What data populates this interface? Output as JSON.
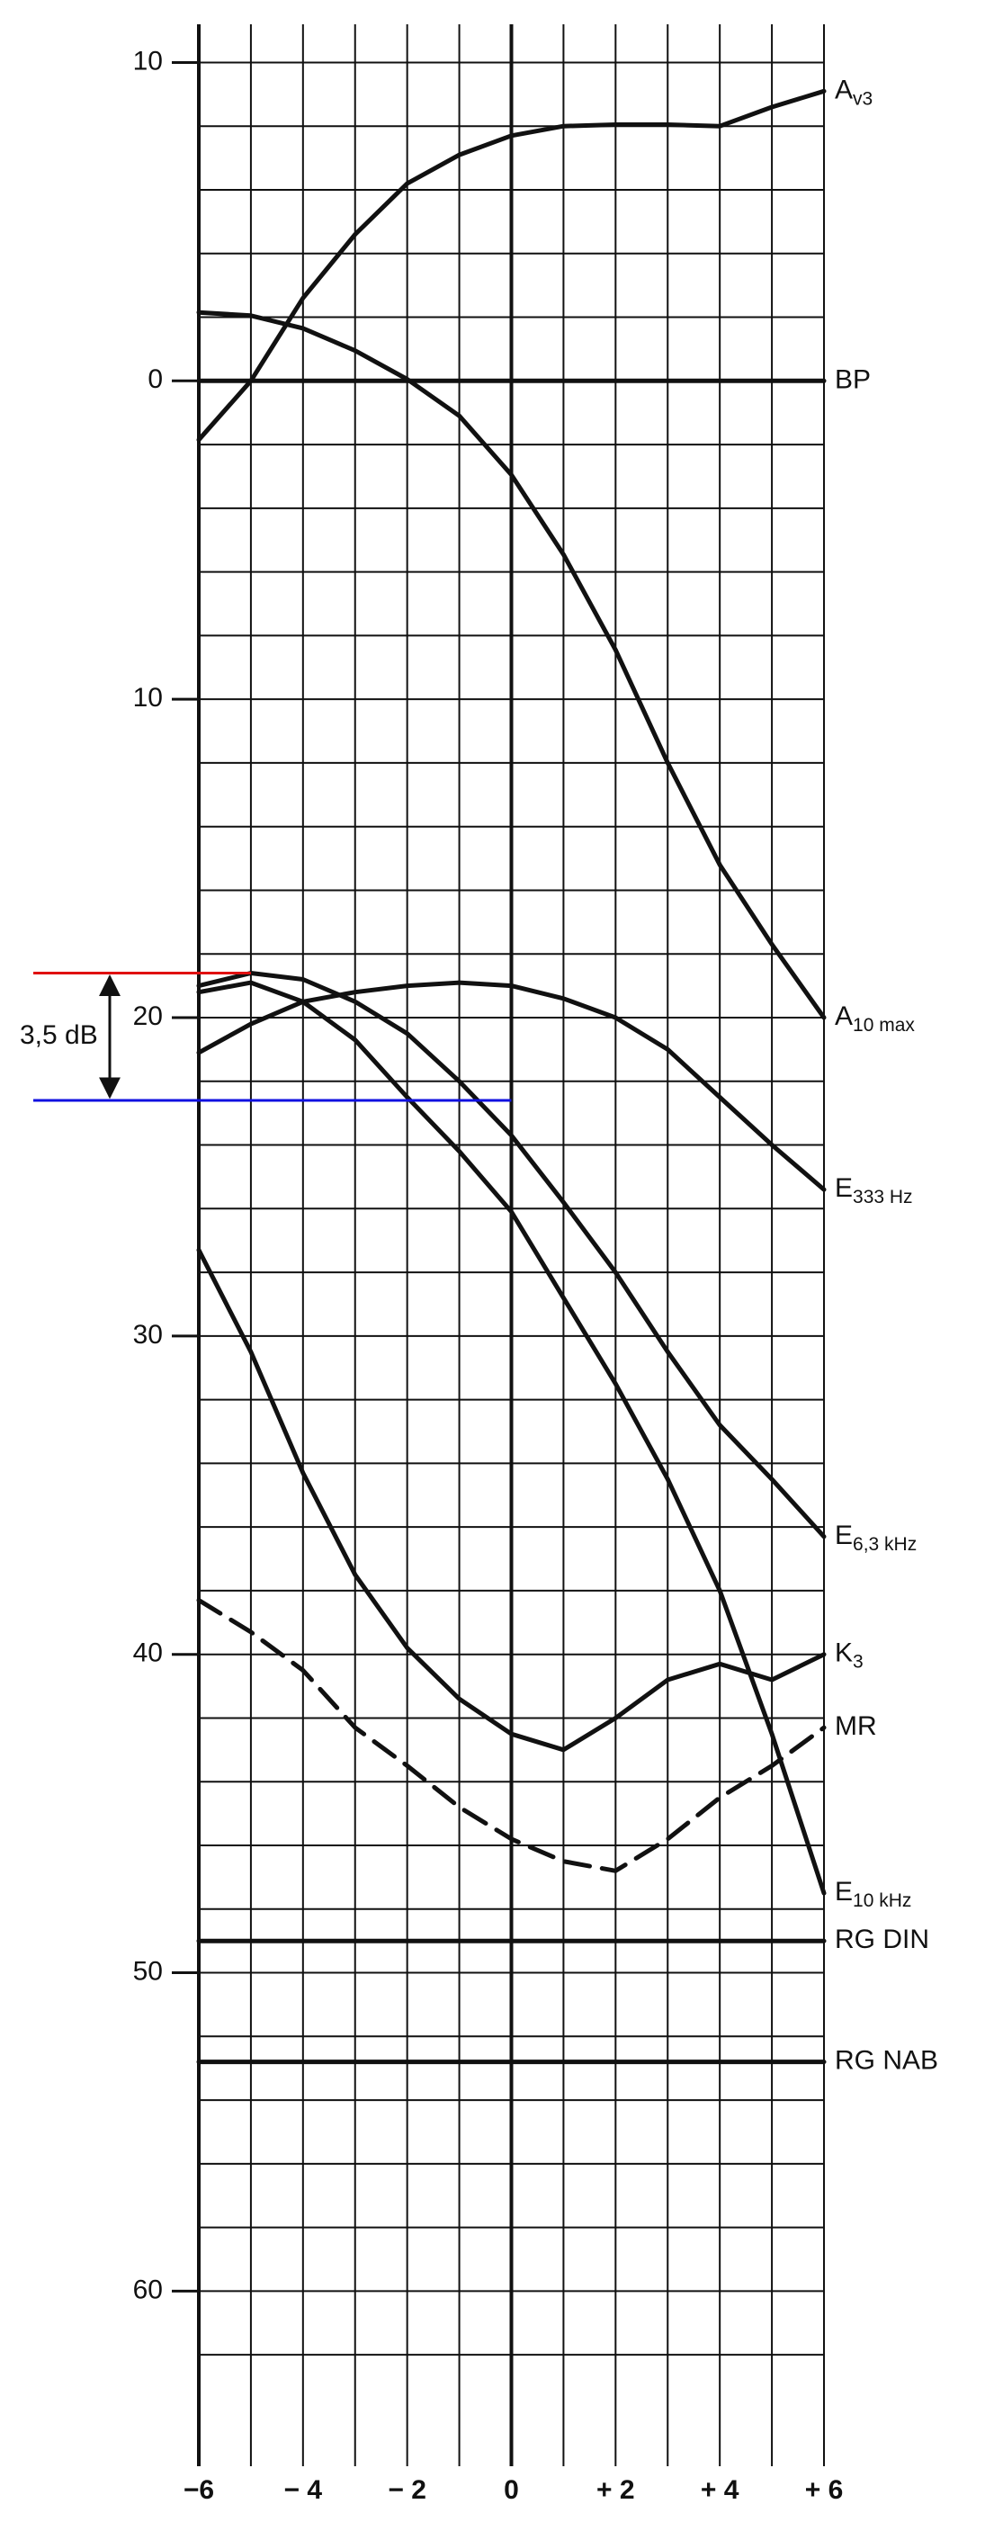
{
  "chart_data": {
    "type": "line",
    "x": [
      -6,
      -5,
      -4,
      -3,
      -2,
      -1,
      0,
      1,
      2,
      3,
      4,
      5,
      6
    ],
    "xlim": [
      -6,
      6
    ],
    "xticks": [
      {
        "value": -6,
        "label": "−6"
      },
      {
        "value": -4,
        "label": "− 4"
      },
      {
        "value": -2,
        "label": "− 2"
      },
      0,
      {
        "value": 2,
        "label": "+ 2"
      },
      {
        "value": 4,
        "label": "+ 4"
      },
      {
        "value": 6,
        "label": "+ 6"
      }
    ],
    "ylim": [
      -11.2,
      65.5
    ],
    "y_inverted": true,
    "yticks": [
      {
        "value": -10,
        "label": "10"
      },
      0,
      10,
      20,
      30,
      40,
      50,
      60
    ],
    "xgrid": [
      -6,
      -5,
      -4,
      -3,
      -2,
      -1,
      0,
      1,
      2,
      3,
      4,
      5,
      6
    ],
    "ygrid": [
      -10,
      -8,
      -6,
      -4,
      -2,
      0,
      2,
      4,
      6,
      8,
      10,
      12,
      14,
      16,
      18,
      20,
      22,
      24,
      26,
      28,
      30,
      32,
      34,
      36,
      38,
      40,
      42,
      44,
      46,
      48,
      50,
      52,
      54,
      56,
      58,
      60,
      62
    ],
    "series": [
      {
        "name": "A",
        "sub": "v3",
        "color": "#111111",
        "values": [
          1.85,
          0,
          -2.6,
          -4.6,
          -6.2,
          -7.1,
          -7.7,
          -8.0,
          -8.05,
          -8.05,
          -8.0,
          -8.6,
          -9.1
        ]
      },
      {
        "name": "BP",
        "color": "#111111",
        "values": [
          0,
          0,
          0,
          0,
          0,
          0,
          0,
          0,
          0,
          0,
          0,
          0,
          0
        ]
      },
      {
        "name": "A",
        "sub": "10 max",
        "color": "#111111",
        "values": [
          -2.15,
          -2.05,
          -1.65,
          -0.95,
          -0.05,
          1.1,
          2.95,
          5.45,
          8.45,
          12.0,
          15.2,
          17.7,
          20.0
        ]
      },
      {
        "name": "E",
        "sub": "333 Hz",
        "color": "#111111",
        "values": [
          21.1,
          20.2,
          19.5,
          19.2,
          19.0,
          18.9,
          19.0,
          19.4,
          20.0,
          21.0,
          22.5,
          24.0,
          25.4
        ]
      },
      {
        "name": "E",
        "sub": "6,3 kHz",
        "color": "#111111",
        "values": [
          19.0,
          18.6,
          18.8,
          19.5,
          20.5,
          22.0,
          23.7,
          25.8,
          28.0,
          30.5,
          32.8,
          34.5,
          36.3
        ]
      },
      {
        "name": "K",
        "sub": "3",
        "color": "#111111",
        "values": [
          27.3,
          30.5,
          34.3,
          37.5,
          39.8,
          41.4,
          42.5,
          43.0,
          42.0,
          40.8,
          40.3,
          40.8,
          40.0
        ]
      },
      {
        "name": "MR",
        "color": "#111111",
        "dashed": true,
        "values": [
          38.3,
          39.3,
          40.5,
          42.3,
          43.5,
          44.8,
          45.8,
          46.5,
          46.8,
          45.8,
          44.5,
          43.5,
          42.3
        ]
      },
      {
        "name": "E",
        "sub": "10 kHz",
        "color": "#111111",
        "values": [
          19.2,
          18.9,
          19.5,
          20.7,
          22.5,
          24.2,
          26.1,
          28.8,
          31.5,
          34.5,
          38.0,
          42.5,
          47.5
        ]
      },
      {
        "name": "RG DIN",
        "color": "#111111",
        "values": [
          49.0,
          49.0,
          49.0,
          49.0,
          49.0,
          49.0,
          49.0,
          49.0,
          49.0,
          49.0,
          49.0,
          49.0,
          49.0
        ]
      },
      {
        "name": "RG NAB",
        "color": "#111111",
        "values": [
          52.8,
          52.8,
          52.8,
          52.8,
          52.8,
          52.8,
          52.8,
          52.8,
          52.8,
          52.8,
          52.8,
          52.8,
          52.8
        ]
      }
    ],
    "annotation": {
      "label": "3,5 dB",
      "color": "#1010e0",
      "upper": {
        "y": 18.6,
        "x_end": -5,
        "color": "#e01010"
      },
      "lower": {
        "y": 22.6,
        "x_end": 0,
        "color": "#1010e0"
      }
    }
  }
}
